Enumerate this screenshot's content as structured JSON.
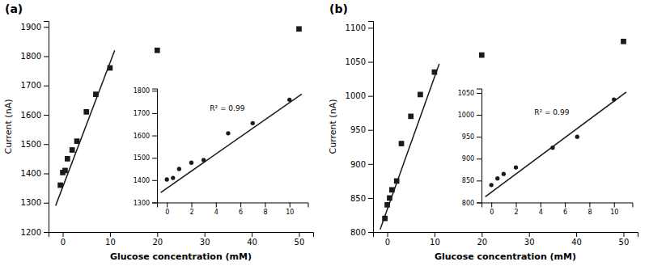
{
  "chart_data": [
    {
      "type": "scatter",
      "title": "(a)",
      "x_label": "Glucose concentration (mM)",
      "y_label": "Current (nA)",
      "xlim": [
        -3,
        53
      ],
      "ylim": [
        1200,
        1920
      ],
      "xticks": [
        0,
        10,
        20,
        30,
        40,
        50
      ],
      "yticks": [
        1200,
        1300,
        1400,
        1500,
        1600,
        1700,
        1800,
        1900
      ],
      "series": [
        {
          "type": "scatter",
          "marker": "square",
          "color": "#1a1a1a",
          "x": [
            -0.5,
            0,
            0.5,
            1,
            2,
            3,
            5,
            7,
            10,
            20,
            50
          ],
          "values": [
            1360,
            1403,
            1410,
            1450,
            1480,
            1510,
            1610,
            1670,
            1760,
            1820,
            1893
          ]
        },
        {
          "type": "line",
          "color": "#1a1a1a",
          "x": [
            -1.5,
            11
          ],
          "values": [
            1290,
            1820
          ]
        }
      ]
    },
    {
      "type": "scatter",
      "xlim": [
        -0.8,
        11.5
      ],
      "ylim": [
        1300,
        1810
      ],
      "xticks": [
        0,
        2,
        4,
        6,
        8,
        10
      ],
      "yticks": [
        1300,
        1400,
        1500,
        1600,
        1700,
        1800
      ],
      "series": [
        {
          "type": "scatter",
          "marker": "circle",
          "color": "#1a1a1a",
          "x": [
            0,
            0.5,
            1,
            2,
            3,
            5,
            7,
            10
          ],
          "values": [
            1403,
            1410,
            1450,
            1478,
            1490,
            1610,
            1655,
            1760
          ]
        },
        {
          "type": "line",
          "color": "#1a1a1a",
          "x": [
            -0.5,
            11
          ],
          "values": [
            1345,
            1785
          ]
        }
      ],
      "annotations": [
        {
          "text": "R² = 0.99",
          "x": 3.5,
          "y": 1720
        }
      ]
    },
    {
      "type": "scatter",
      "title": "(b)",
      "x_label": "Glucose concentration (mM)",
      "y_label": "Current (nA)",
      "xlim": [
        -3,
        53
      ],
      "ylim": [
        800,
        1110
      ],
      "xticks": [
        0,
        10,
        20,
        30,
        40,
        50
      ],
      "yticks": [
        800,
        850,
        900,
        950,
        1000,
        1050,
        1100
      ],
      "series": [
        {
          "type": "scatter",
          "marker": "square",
          "color": "#1a1a1a",
          "x": [
            -0.5,
            0,
            0.5,
            1,
            2,
            3,
            5,
            7,
            10,
            20,
            50
          ],
          "values": [
            820,
            840,
            850,
            862,
            875,
            930,
            970,
            1002,
            1035,
            1060,
            1080
          ]
        },
        {
          "type": "line",
          "color": "#1a1a1a",
          "x": [
            -1.5,
            11
          ],
          "values": [
            804,
            1047
          ]
        }
      ]
    },
    {
      "type": "scatter",
      "xlim": [
        -0.8,
        11.5
      ],
      "ylim": [
        800,
        1060
      ],
      "xticks": [
        0,
        2,
        4,
        6,
        8,
        10
      ],
      "yticks": [
        800,
        850,
        900,
        950,
        1000,
        1050
      ],
      "series": [
        {
          "type": "scatter",
          "marker": "circle",
          "color": "#1a1a1a",
          "x": [
            0,
            0.5,
            1,
            2,
            5,
            7,
            10
          ],
          "values": [
            840,
            855,
            865,
            880,
            925,
            950,
            1035
          ]
        },
        {
          "type": "line",
          "color": "#1a1a1a",
          "x": [
            -0.5,
            11
          ],
          "values": [
            813,
            1052
          ]
        }
      ],
      "annotations": [
        {
          "text": "R² = 0.99",
          "x": 3.5,
          "y": 1005
        }
      ]
    }
  ]
}
